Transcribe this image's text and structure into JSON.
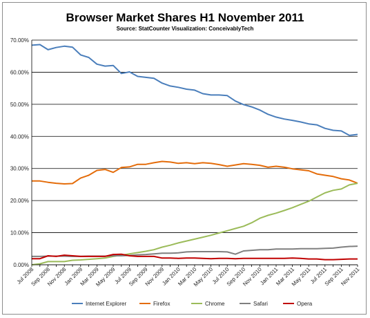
{
  "chart_data": {
    "type": "line",
    "title": "Browser Market Shares H1 November 2011",
    "subtitle": "Source: StatCounter    Visualization: ConceivablyTech",
    "xlabel": "",
    "ylabel": "",
    "ylim": [
      0,
      70
    ],
    "y_ticks": [
      "0.00%",
      "10.00%",
      "20.00%",
      "30.00%",
      "40.00%",
      "50.00%",
      "60.00%",
      "70.00%"
    ],
    "grid": "horizontal",
    "legend_position": "bottom",
    "x": [
      "Jul 2008",
      "Aug 2008",
      "Sep 2008",
      "Oct 2008",
      "Nov 2008",
      "Dec 2008",
      "Jan 2009",
      "Feb 2009",
      "Mar 2009",
      "Apr 2009",
      "May 2009",
      "Jun 2009",
      "Jul 2009",
      "Aug 2009",
      "Sep 2009",
      "Oct 2009",
      "Nov 2009",
      "Dec 2009",
      "Jan 2010",
      "Feb 2010",
      "Mar 2010",
      "Apr 2010",
      "May 2010",
      "Jun 2010",
      "Jul 2010",
      "Aug 2010",
      "Sep 2010",
      "Oct 2010",
      "Nov 2010",
      "Dec 2010",
      "Jan 2011",
      "Feb 2011",
      "Mar 2011",
      "Apr 2011",
      "May 2011",
      "Jun 2011",
      "Jul 2011",
      "Aug 2011",
      "Sep 2011",
      "Oct 2011",
      "Nov 2011"
    ],
    "x_tick_labels": [
      "Jul 2008",
      "Sep 2008",
      "Nov 2008",
      "Jan 2009",
      "Mar 2009",
      "May 2009",
      "Jul 2009",
      "Sep 2009",
      "Nov 2009",
      "Jan 2010",
      "Mar 2010",
      "May 2010",
      "Jul 2010",
      "Sep 2010",
      "Nov 2010",
      "Jan 2011",
      "Mar 2011",
      "May 2011",
      "Jul 2011",
      "Sep 2011",
      "Nov 2011"
    ],
    "series": [
      {
        "name": "Internet Explorer",
        "color": "#4a7ebb",
        "values": [
          68.4,
          68.6,
          67.0,
          67.7,
          68.1,
          67.8,
          65.4,
          64.6,
          62.5,
          61.9,
          62.1,
          59.6,
          60.1,
          58.7,
          58.4,
          58.1,
          56.6,
          55.7,
          55.3,
          54.7,
          54.4,
          53.3,
          52.9,
          52.9,
          52.7,
          51.0,
          49.9,
          49.2,
          48.2,
          46.9,
          46.0,
          45.4,
          45.0,
          44.5,
          43.9,
          43.6,
          42.5,
          41.9,
          41.7,
          40.3,
          40.6
        ]
      },
      {
        "name": "Firefox",
        "color": "#e46c0a",
        "values": [
          26.1,
          26.1,
          25.7,
          25.4,
          25.2,
          25.3,
          27.0,
          27.9,
          29.4,
          29.7,
          28.8,
          30.3,
          30.5,
          31.3,
          31.3,
          31.8,
          32.2,
          32.0,
          31.6,
          31.8,
          31.5,
          31.8,
          31.6,
          31.2,
          30.7,
          31.1,
          31.5,
          31.3,
          31.0,
          30.4,
          30.7,
          30.4,
          29.9,
          29.6,
          29.3,
          28.3,
          27.9,
          27.5,
          26.8,
          26.4,
          25.4
        ]
      },
      {
        "name": "Chrome",
        "color": "#9bbb59",
        "values": [
          0.0,
          0.3,
          1.0,
          1.0,
          1.0,
          1.4,
          1.5,
          1.7,
          1.9,
          2.1,
          2.6,
          3.0,
          3.4,
          3.8,
          4.2,
          4.7,
          5.5,
          6.1,
          6.8,
          7.4,
          8.0,
          8.6,
          9.2,
          9.9,
          10.6,
          11.3,
          12.0,
          13.1,
          14.5,
          15.4,
          16.1,
          16.9,
          17.8,
          18.8,
          19.8,
          21.1,
          22.4,
          23.2,
          23.6,
          24.9,
          25.4
        ]
      },
      {
        "name": "Safari",
        "color": "#7f7f7f",
        "values": [
          2.6,
          2.6,
          2.7,
          2.7,
          2.7,
          2.6,
          2.6,
          2.7,
          2.7,
          2.7,
          2.8,
          2.8,
          2.9,
          3.1,
          3.2,
          3.4,
          3.6,
          3.6,
          3.7,
          4.0,
          4.1,
          4.1,
          4.1,
          4.1,
          4.0,
          3.3,
          4.3,
          4.5,
          4.7,
          4.7,
          4.9,
          4.9,
          4.9,
          5.0,
          5.0,
          5.0,
          5.1,
          5.2,
          5.5,
          5.7,
          5.8
        ]
      },
      {
        "name": "Opera",
        "color": "#c00000",
        "values": [
          1.9,
          1.9,
          2.8,
          2.6,
          3.0,
          2.8,
          2.6,
          2.6,
          2.6,
          2.6,
          3.2,
          3.3,
          2.8,
          2.6,
          2.6,
          2.6,
          2.1,
          2.1,
          2.0,
          2.1,
          2.1,
          2.0,
          1.9,
          2.0,
          2.0,
          1.9,
          2.0,
          2.0,
          2.0,
          2.0,
          2.0,
          2.0,
          2.1,
          2.0,
          1.8,
          1.8,
          1.6,
          1.6,
          1.7,
          1.8,
          1.8
        ]
      }
    ]
  }
}
